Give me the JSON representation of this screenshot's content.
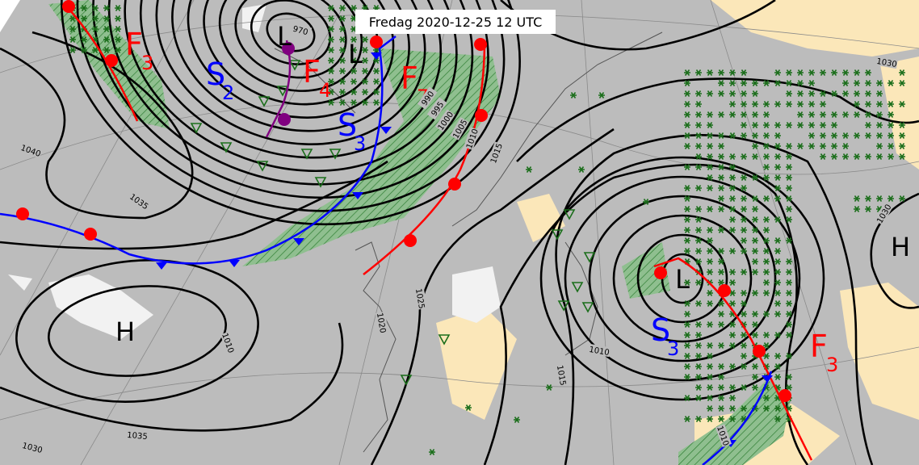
{
  "title": "Fredag 2020-12-25 12 UTC",
  "pressure_centers": [
    {
      "label": "H"
    },
    {
      "label": "L"
    },
    {
      "label": "L"
    },
    {
      "label": "L"
    },
    {
      "label": "H"
    }
  ],
  "fronts": [
    {
      "letter": "F",
      "index": "3",
      "color": "#ff0000"
    },
    {
      "letter": "S",
      "index": "2",
      "color": "#0000ff"
    },
    {
      "letter": "F",
      "index": "4",
      "color": "#ff0000"
    },
    {
      "letter": "S",
      "index": "3",
      "color": "#0000ff"
    },
    {
      "letter": "F",
      "index": "7",
      "color": "#ff0000"
    },
    {
      "letter": "S",
      "index": "3",
      "color": "#0000ff"
    },
    {
      "letter": "F",
      "index": "3",
      "color": "#ff0000"
    }
  ],
  "isobar_labels": [
    "1040",
    "1035",
    "970",
    "990",
    "995",
    "1000",
    "1005",
    "1010",
    "1015",
    "1025",
    "1020",
    "1010",
    "1015",
    "1010",
    "1010",
    "1030",
    "1030",
    "1035",
    "1030"
  ]
}
